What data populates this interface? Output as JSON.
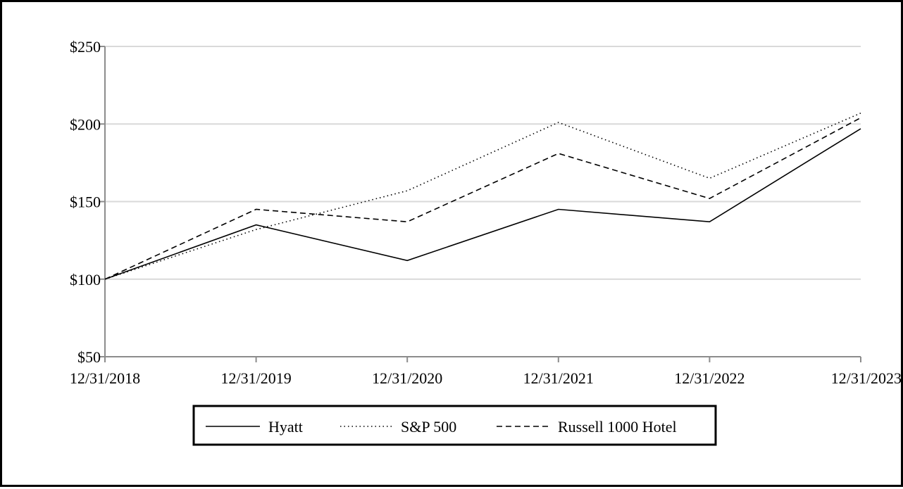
{
  "chart_data": {
    "type": "line",
    "title": "",
    "xlabel": "",
    "ylabel": "",
    "categories": [
      "12/31/2018",
      "12/31/2019",
      "12/31/2020",
      "12/31/2021",
      "12/31/2022",
      "12/31/2023"
    ],
    "y_ticks": [
      50,
      100,
      150,
      200,
      250
    ],
    "y_tick_labels": [
      "$50",
      "$100",
      "$150",
      "$200",
      "$250"
    ],
    "ylim": [
      50,
      250
    ],
    "grid": true,
    "legend_position": "bottom",
    "series": [
      {
        "name": "Hyatt",
        "style": "solid",
        "values": [
          100,
          135,
          112,
          145,
          137,
          197
        ]
      },
      {
        "name": "S&P 500",
        "style": "dotted",
        "values": [
          100,
          132,
          157,
          201,
          165,
          207
        ]
      },
      {
        "name": "Russell 1000 Hotel",
        "style": "dashed",
        "values": [
          100,
          145,
          137,
          181,
          152,
          204
        ]
      }
    ],
    "colors": {
      "line": "#000000",
      "grid": "#d9d9d9",
      "axis": "#8c8c8c"
    }
  }
}
